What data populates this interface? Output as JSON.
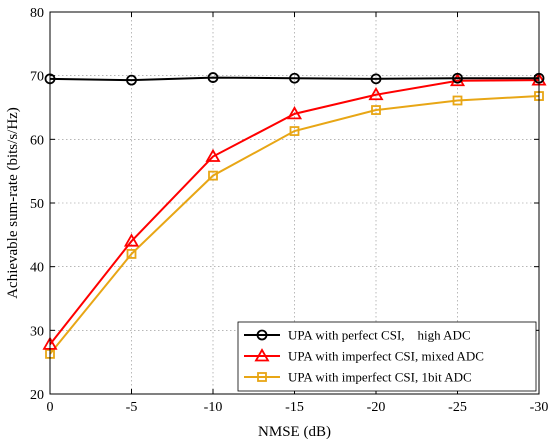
{
  "chart_data": {
    "type": "line",
    "title": "",
    "xlabel": "NMSE (dB)",
    "ylabel": "Achievable sum-rate (bits/s/Hz)",
    "x": [
      0,
      -5,
      -10,
      -15,
      -20,
      -25,
      -30
    ],
    "xlim": [
      0,
      -30
    ],
    "ylim": [
      20,
      80
    ],
    "xticks": [
      "0",
      "-5",
      "-10",
      "-15",
      "-20",
      "-25",
      "-30"
    ],
    "yticks": [
      "20",
      "30",
      "40",
      "50",
      "60",
      "70",
      "80"
    ],
    "grid": true,
    "legend_position": "bottom-right",
    "series": [
      {
        "name": "UPA with perfect CSI,    high ADC",
        "values": [
          69.5,
          69.3,
          69.7,
          69.6,
          69.5,
          69.6,
          69.6
        ],
        "color": "#000000",
        "marker": "circle"
      },
      {
        "name": "UPA with imperfect CSI, mixed ADC",
        "values": [
          27.8,
          44.0,
          57.3,
          64.0,
          67.0,
          69.2,
          69.3
        ],
        "color": "#ff0000",
        "marker": "triangle"
      },
      {
        "name": "UPA with imperfect CSI, 1bit ADC",
        "values": [
          26.3,
          42.0,
          54.3,
          61.3,
          64.6,
          66.1,
          66.8
        ],
        "color": "#e8a615",
        "marker": "square"
      }
    ]
  }
}
